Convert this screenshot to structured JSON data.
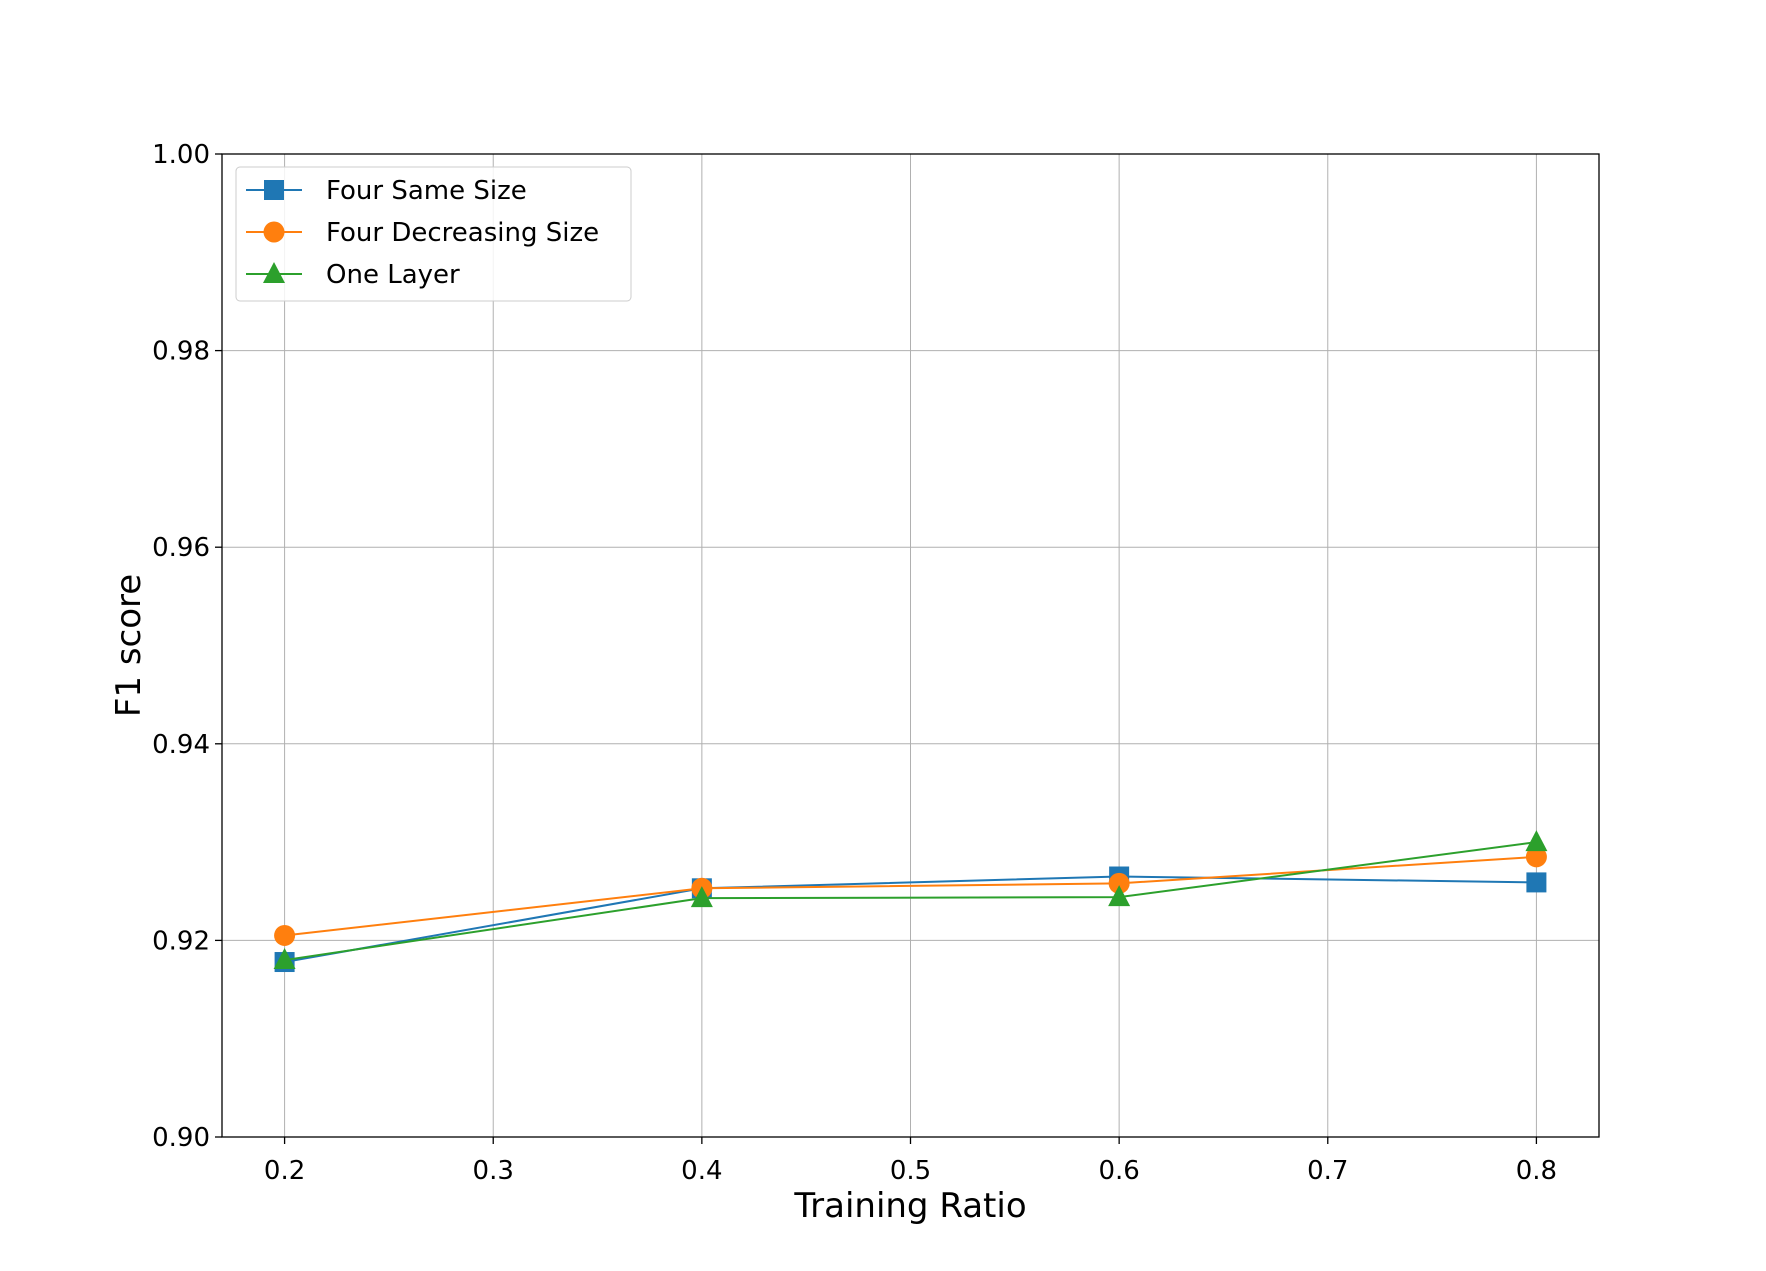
{
  "chart_data": {
    "type": "line",
    "title": "",
    "xlabel": "Training Ratio",
    "ylabel": "F1 score",
    "xlim": [
      0.17,
      0.83
    ],
    "ylim": [
      0.9,
      1.0
    ],
    "x_ticks": [
      "0.2",
      "0.3",
      "0.4",
      "0.5",
      "0.6",
      "0.7",
      "0.8"
    ],
    "y_ticks": [
      "0.90",
      "0.92",
      "0.94",
      "0.96",
      "0.98",
      "1.00"
    ],
    "grid": true,
    "legend_position": "top-left",
    "x": [
      0.2,
      0.4,
      0.6,
      0.8
    ],
    "series": [
      {
        "name": "Four Same Size",
        "marker": "square",
        "color": "#1f77b4",
        "values": [
          0.9178,
          0.9253,
          0.9265,
          0.9259
        ]
      },
      {
        "name": "Four Decreasing Size",
        "marker": "circle",
        "color": "#ff7f0e",
        "values": [
          0.9205,
          0.9253,
          0.9258,
          0.9285
        ]
      },
      {
        "name": "One Layer",
        "marker": "triangle",
        "color": "#2ca02c",
        "values": [
          0.918,
          0.9243,
          0.9244,
          0.93
        ]
      }
    ]
  }
}
